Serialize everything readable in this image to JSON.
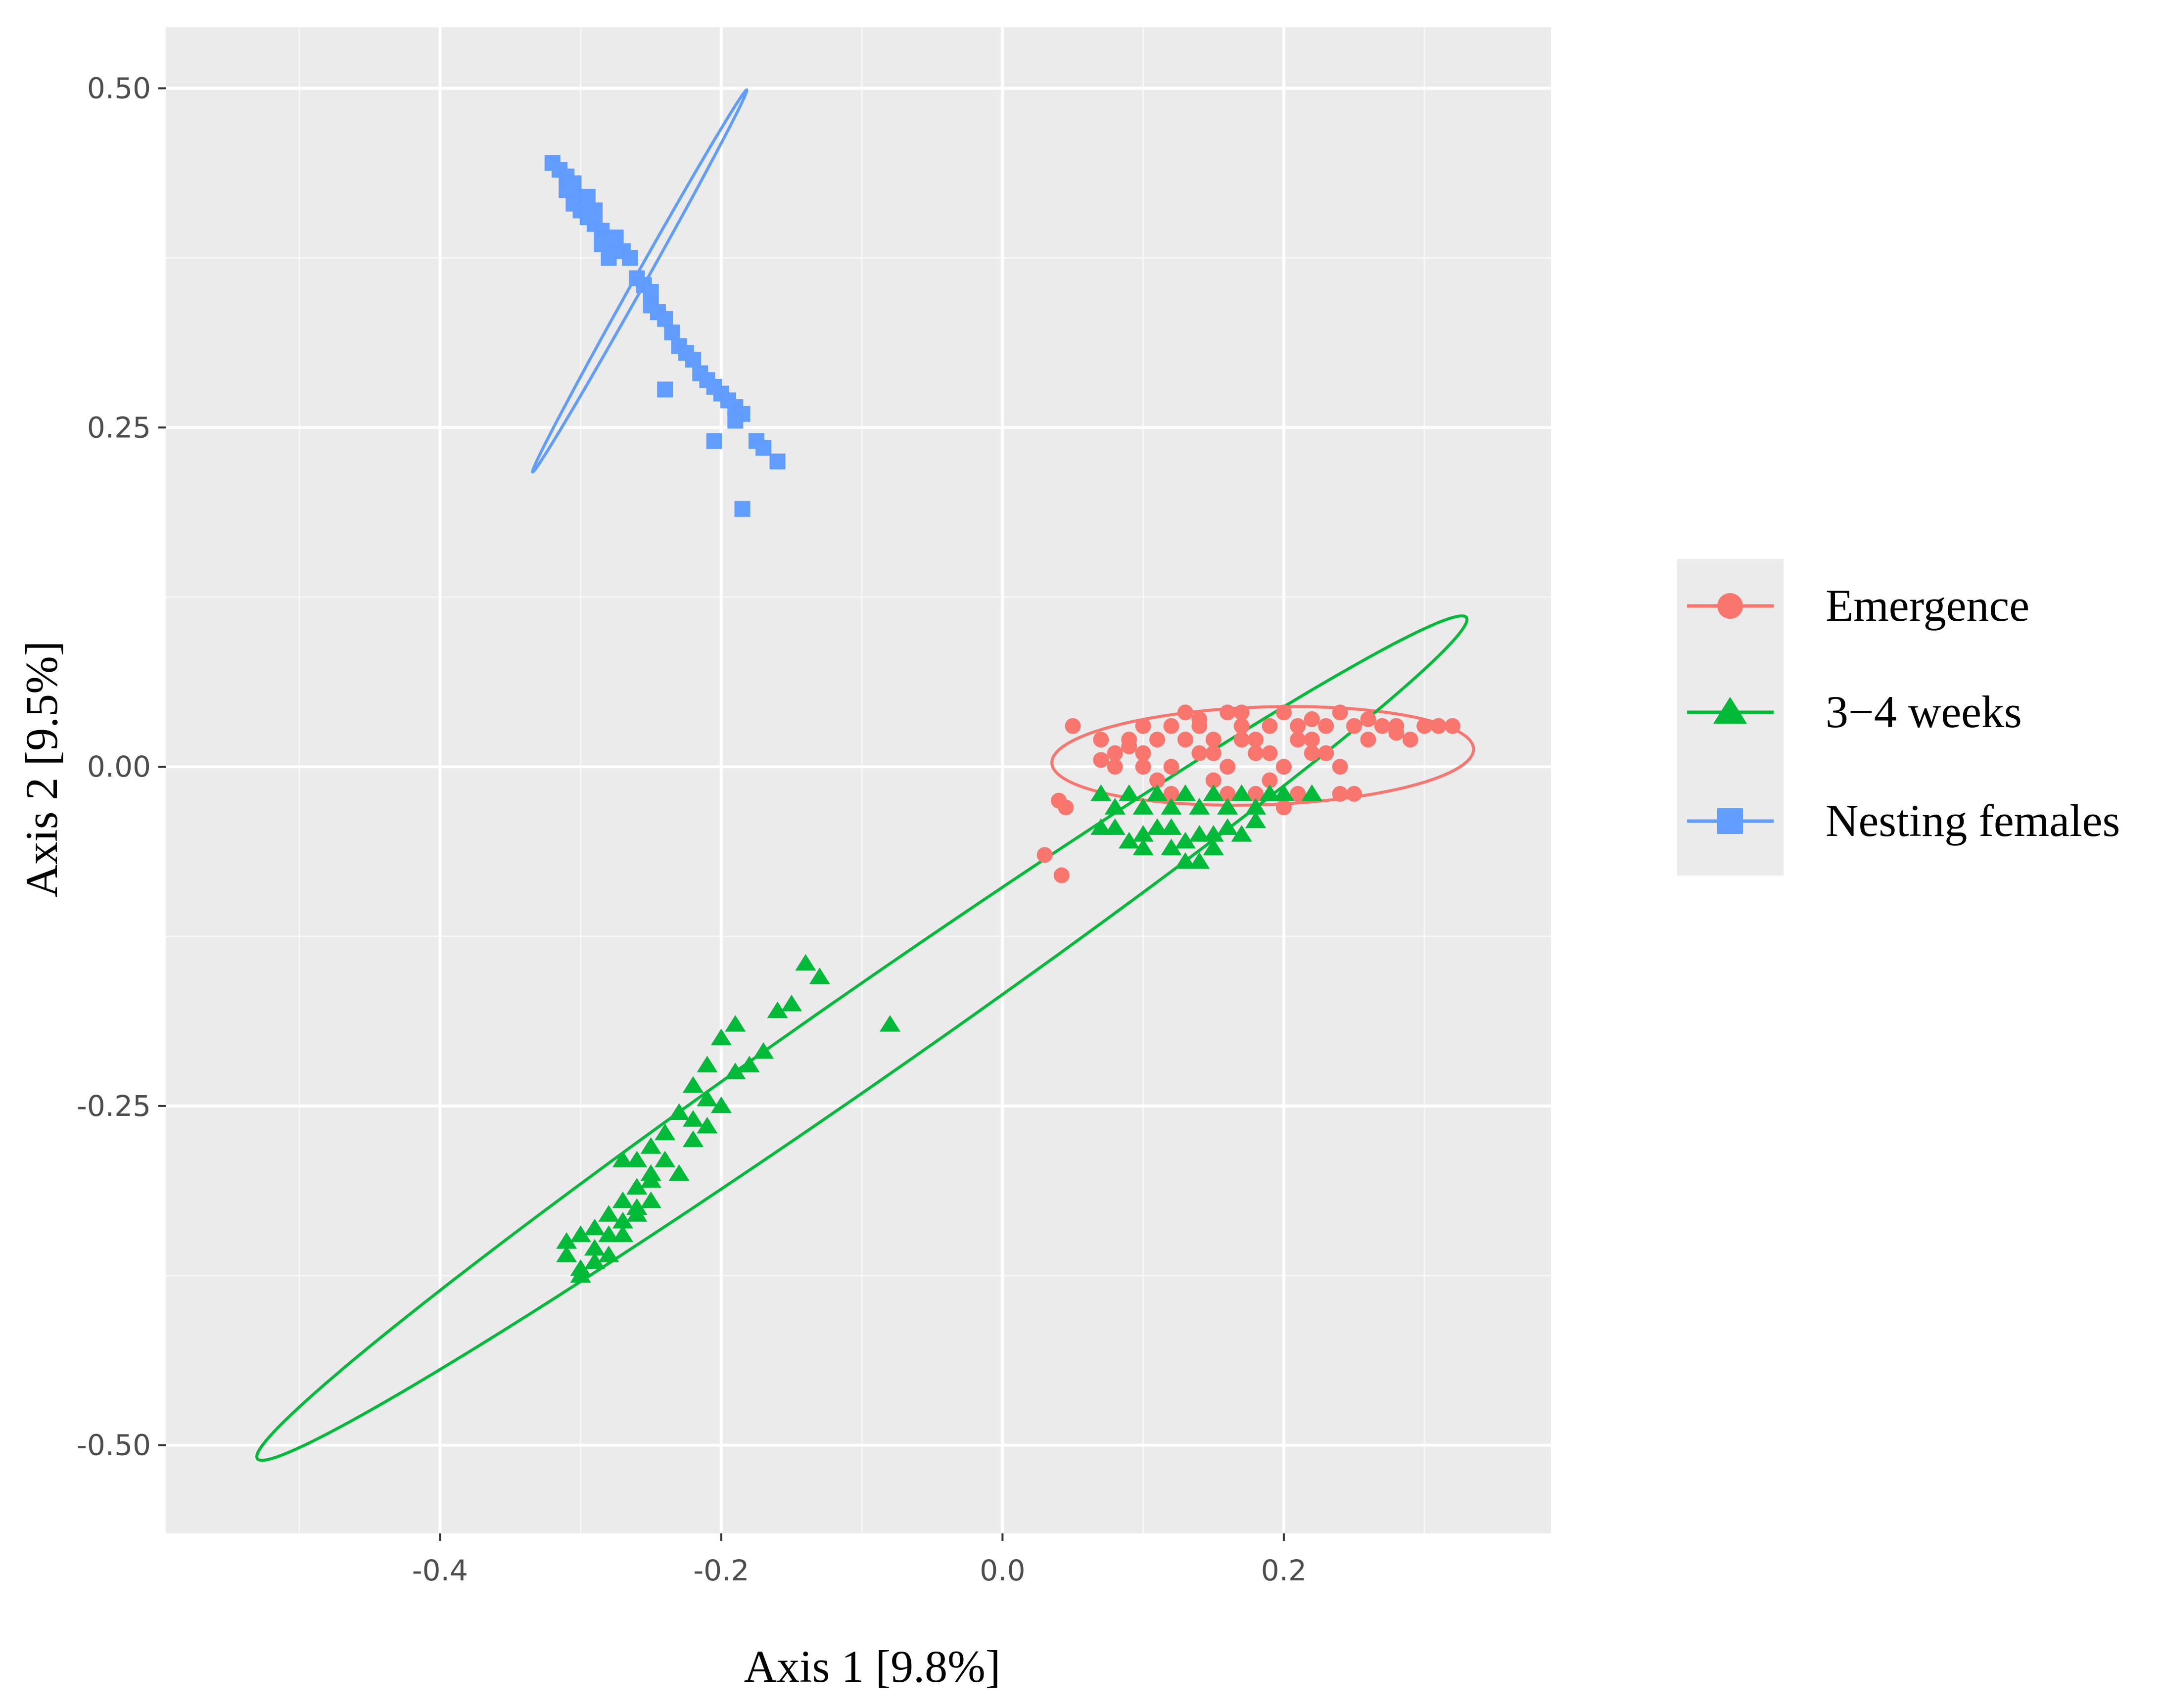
{
  "chart_data": {
    "type": "scatter",
    "title": "",
    "xlabel": "Axis 1 [9.8%]",
    "ylabel": "Axis 2 [9.5%]",
    "xlim": [
      -0.595,
      0.39
    ],
    "ylim": [
      -0.565,
      0.545
    ],
    "x_ticks": [
      -0.4,
      -0.2,
      0.0,
      0.2
    ],
    "x_tick_labels": [
      "-0.4",
      "-0.2",
      "0.0",
      "0.2"
    ],
    "y_ticks": [
      -0.5,
      -0.25,
      0.0,
      0.25,
      0.5
    ],
    "y_tick_labels": [
      "-0.50",
      "-0.25",
      "0.00",
      "0.25",
      "0.50"
    ],
    "grid": true,
    "panel_background": "#ebebeb",
    "legend_position": "right",
    "series": [
      {
        "name": "Emergence",
        "marker": "circle",
        "color": "#f8766d",
        "ellipse": {
          "cx": 0.185,
          "cy": 0.008,
          "rx": 0.15,
          "ry": 0.036,
          "angle_deg": 2
        },
        "points": [
          [
            0.05,
            0.03
          ],
          [
            0.07,
            0.02
          ],
          [
            0.08,
            0.01
          ],
          [
            0.09,
            0.02
          ],
          [
            0.1,
            0.03
          ],
          [
            0.11,
            0.02
          ],
          [
            0.12,
            0.03
          ],
          [
            0.13,
            0.04
          ],
          [
            0.14,
            0.03
          ],
          [
            0.15,
            0.02
          ],
          [
            0.16,
            0.04
          ],
          [
            0.17,
            0.03
          ],
          [
            0.18,
            0.02
          ],
          [
            0.19,
            0.03
          ],
          [
            0.2,
            0.04
          ],
          [
            0.21,
            0.03
          ],
          [
            0.22,
            0.02
          ],
          [
            0.23,
            0.03
          ],
          [
            0.24,
            0.04
          ],
          [
            0.25,
            0.03
          ],
          [
            0.26,
            0.02
          ],
          [
            0.27,
            0.03
          ],
          [
            0.28,
            0.03
          ],
          [
            0.29,
            0.02
          ],
          [
            0.3,
            0.03
          ],
          [
            0.31,
            0.03
          ],
          [
            0.32,
            0.03
          ],
          [
            0.08,
            0.0
          ],
          [
            0.1,
            0.01
          ],
          [
            0.12,
            0.0
          ],
          [
            0.14,
            0.01
          ],
          [
            0.16,
            0.0
          ],
          [
            0.18,
            0.01
          ],
          [
            0.2,
            0.0
          ],
          [
            0.22,
            0.01
          ],
          [
            0.24,
            0.0
          ],
          [
            0.13,
            0.02
          ],
          [
            0.15,
            0.01
          ],
          [
            0.17,
            0.02
          ],
          [
            0.19,
            0.01
          ],
          [
            0.21,
            0.02
          ],
          [
            0.23,
            0.01
          ],
          [
            0.11,
            -0.01
          ],
          [
            0.15,
            -0.01
          ],
          [
            0.19,
            -0.01
          ],
          [
            0.21,
            -0.02
          ],
          [
            0.24,
            -0.02
          ],
          [
            0.12,
            -0.02
          ],
          [
            0.16,
            -0.02
          ],
          [
            0.18,
            -0.02
          ],
          [
            0.2,
            -0.03
          ],
          [
            0.25,
            -0.02
          ],
          [
            0.04,
            -0.025
          ],
          [
            0.045,
            -0.03
          ],
          [
            0.03,
            -0.065
          ],
          [
            0.042,
            -0.08
          ],
          [
            0.09,
            0.015
          ],
          [
            0.26,
            0.035
          ],
          [
            0.28,
            0.025
          ],
          [
            0.14,
            0.035
          ],
          [
            0.17,
            0.04
          ],
          [
            0.22,
            0.035
          ],
          [
            0.1,
            0.0
          ],
          [
            0.07,
            0.005
          ]
        ]
      },
      {
        "name": "3−4 weeks",
        "marker": "triangle",
        "color": "#00ba38",
        "ellipse": {
          "cx": -0.1,
          "cy": -0.2,
          "rx": 0.53,
          "ry": 0.033,
          "angle_deg": 35.8
        },
        "points": [
          [
            0.07,
            -0.02
          ],
          [
            0.08,
            -0.03
          ],
          [
            0.09,
            -0.02
          ],
          [
            0.1,
            -0.03
          ],
          [
            0.11,
            -0.02
          ],
          [
            0.12,
            -0.03
          ],
          [
            0.13,
            -0.02
          ],
          [
            0.14,
            -0.03
          ],
          [
            0.15,
            -0.02
          ],
          [
            0.16,
            -0.03
          ],
          [
            0.17,
            -0.02
          ],
          [
            0.18,
            -0.03
          ],
          [
            0.19,
            -0.02
          ],
          [
            0.2,
            -0.02
          ],
          [
            0.22,
            -0.02
          ],
          [
            0.08,
            -0.045
          ],
          [
            0.1,
            -0.05
          ],
          [
            0.12,
            -0.045
          ],
          [
            0.14,
            -0.05
          ],
          [
            0.16,
            -0.045
          ],
          [
            0.18,
            -0.04
          ],
          [
            0.07,
            -0.045
          ],
          [
            0.09,
            -0.055
          ],
          [
            0.11,
            -0.045
          ],
          [
            0.13,
            -0.055
          ],
          [
            0.15,
            -0.05
          ],
          [
            0.17,
            -0.05
          ],
          [
            0.14,
            -0.07
          ],
          [
            0.13,
            -0.07
          ],
          [
            0.15,
            -0.06
          ],
          [
            0.1,
            -0.06
          ],
          [
            0.12,
            -0.06
          ],
          [
            -0.14,
            -0.145
          ],
          [
            -0.13,
            -0.155
          ],
          [
            -0.08,
            -0.19
          ],
          [
            -0.15,
            -0.175
          ],
          [
            -0.16,
            -0.18
          ],
          [
            -0.19,
            -0.19
          ],
          [
            -0.2,
            -0.2
          ],
          [
            -0.17,
            -0.21
          ],
          [
            -0.18,
            -0.22
          ],
          [
            -0.19,
            -0.225
          ],
          [
            -0.21,
            -0.22
          ],
          [
            -0.22,
            -0.235
          ],
          [
            -0.21,
            -0.245
          ],
          [
            -0.2,
            -0.25
          ],
          [
            -0.22,
            -0.26
          ],
          [
            -0.23,
            -0.255
          ],
          [
            -0.24,
            -0.27
          ],
          [
            -0.21,
            -0.265
          ],
          [
            -0.22,
            -0.275
          ],
          [
            -0.25,
            -0.28
          ],
          [
            -0.24,
            -0.29
          ],
          [
            -0.25,
            -0.3
          ],
          [
            -0.26,
            -0.29
          ],
          [
            -0.27,
            -0.29
          ],
          [
            -0.23,
            -0.3
          ],
          [
            -0.26,
            -0.31
          ],
          [
            -0.27,
            -0.32
          ],
          [
            -0.25,
            -0.32
          ],
          [
            -0.26,
            -0.325
          ],
          [
            -0.28,
            -0.33
          ],
          [
            -0.27,
            -0.335
          ],
          [
            -0.26,
            -0.33
          ],
          [
            -0.28,
            -0.345
          ],
          [
            -0.29,
            -0.34
          ],
          [
            -0.3,
            -0.345
          ],
          [
            -0.31,
            -0.35
          ],
          [
            -0.29,
            -0.355
          ],
          [
            -0.28,
            -0.36
          ],
          [
            -0.31,
            -0.36
          ],
          [
            -0.3,
            -0.37
          ],
          [
            -0.29,
            -0.365
          ],
          [
            -0.3,
            -0.375
          ],
          [
            -0.27,
            -0.345
          ],
          [
            -0.25,
            -0.305
          ]
        ]
      },
      {
        "name": "Nesting females",
        "marker": "square",
        "color": "#619cff",
        "ellipse": {
          "cx": -0.258,
          "cy": 0.358,
          "rx": 0.16,
          "ry": 0.004,
          "angle_deg": 61.6
        },
        "points": [
          [
            -0.32,
            0.445
          ],
          [
            -0.315,
            0.44
          ],
          [
            -0.31,
            0.435
          ],
          [
            -0.31,
            0.425
          ],
          [
            -0.305,
            0.43
          ],
          [
            -0.3,
            0.42
          ],
          [
            -0.305,
            0.415
          ],
          [
            -0.3,
            0.41
          ],
          [
            -0.295,
            0.405
          ],
          [
            -0.29,
            0.41
          ],
          [
            -0.29,
            0.4
          ],
          [
            -0.285,
            0.395
          ],
          [
            -0.28,
            0.39
          ],
          [
            -0.285,
            0.385
          ],
          [
            -0.275,
            0.38
          ],
          [
            -0.28,
            0.375
          ],
          [
            -0.27,
            0.38
          ],
          [
            -0.265,
            0.375
          ],
          [
            -0.26,
            0.36
          ],
          [
            -0.255,
            0.355
          ],
          [
            -0.25,
            0.35
          ],
          [
            -0.25,
            0.34
          ],
          [
            -0.245,
            0.335
          ],
          [
            -0.24,
            0.33
          ],
          [
            -0.235,
            0.32
          ],
          [
            -0.23,
            0.31
          ],
          [
            -0.225,
            0.305
          ],
          [
            -0.22,
            0.3
          ],
          [
            -0.215,
            0.29
          ],
          [
            -0.21,
            0.285
          ],
          [
            -0.205,
            0.28
          ],
          [
            -0.2,
            0.275
          ],
          [
            -0.195,
            0.27
          ],
          [
            -0.19,
            0.265
          ],
          [
            -0.185,
            0.26
          ],
          [
            -0.19,
            0.255
          ],
          [
            -0.175,
            0.24
          ],
          [
            -0.17,
            0.235
          ],
          [
            -0.16,
            0.225
          ],
          [
            -0.24,
            0.278
          ],
          [
            -0.205,
            0.24
          ],
          [
            -0.185,
            0.19
          ],
          [
            -0.275,
            0.39
          ],
          [
            -0.295,
            0.42
          ]
        ]
      }
    ]
  }
}
